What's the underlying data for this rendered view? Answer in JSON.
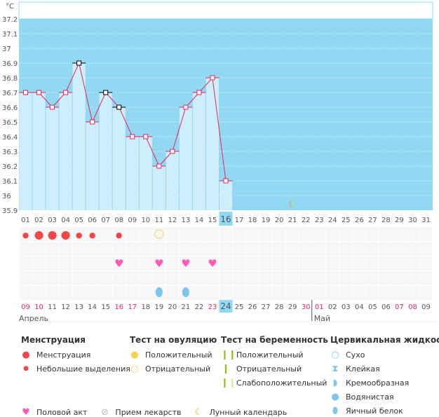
{
  "chart_data": {
    "type": "line",
    "unit": "°C",
    "ylim": [
      35.9,
      37.2
    ],
    "yticks": [
      "37.2",
      "37.1",
      "37",
      "36.9",
      "36.8",
      "36.7",
      "36.6",
      "36.5",
      "36.4",
      "36.3",
      "36.2",
      "36.1",
      "36",
      "35.9"
    ],
    "cycle_days": [
      "01",
      "02",
      "03",
      "04",
      "05",
      "06",
      "07",
      "08",
      "09",
      "10",
      "11",
      "12",
      "13",
      "14",
      "15",
      "16",
      "17",
      "18",
      "19",
      "20",
      "21",
      "22",
      "23",
      "24",
      "25",
      "26",
      "27",
      "28",
      "29",
      "30",
      "31"
    ],
    "values": [
      36.7,
      36.7,
      36.6,
      36.7,
      36.9,
      36.5,
      36.7,
      36.6,
      36.4,
      36.4,
      36.2,
      36.3,
      36.6,
      36.7,
      36.8,
      36.1
    ],
    "black_markers_days": [
      5,
      7,
      8
    ],
    "current_day": 16,
    "moon_day": 21,
    "grid": true,
    "colors": {
      "background": "#92d8f2",
      "bar": "#cdeefb",
      "line": "#e8245a",
      "menses": "#f04848",
      "heart": "#ff5ab4",
      "fluid": "#7cc6ee",
      "ovulation_negative": "#f7d44c",
      "moon": "#f5a020",
      "red_date": "#e8245a",
      "highlight": "#92d8f2"
    }
  },
  "events": {
    "menstruation": {
      "1": "small",
      "2": "big",
      "3": "big",
      "4": "big",
      "5": "small",
      "6": "small",
      "8": "small"
    },
    "ovulation_test_negative": [
      11
    ],
    "intercourse": [
      8,
      11,
      13,
      15
    ],
    "egg_white_fluid": [
      11,
      13
    ]
  },
  "calendar_dates": [
    "09",
    "10",
    "11",
    "12",
    "13",
    "14",
    "15",
    "16",
    "17",
    "18",
    "19",
    "20",
    "21",
    "22",
    "23",
    "24",
    "25",
    "26",
    "27",
    "28",
    "29",
    "30",
    "01",
    "02",
    "03",
    "04",
    "05",
    "06",
    "07",
    "08",
    "09"
  ],
  "red_date_indices": [
    0,
    1,
    7,
    8,
    14,
    21,
    22,
    28,
    29
  ],
  "months": {
    "first": "Апрель",
    "second": "Май"
  },
  "legend": {
    "menstruation": {
      "title": "Менструация",
      "items": [
        "Менструация",
        "Небольшие выделения"
      ]
    },
    "ovulation": {
      "title": "Тест на овуляцию",
      "items": [
        "Положительный",
        "Отрицательный"
      ]
    },
    "pregnancy": {
      "title": "Тест на беременность",
      "items": [
        "Положительный",
        "Отрицательный",
        "Слабоположительный"
      ]
    },
    "fluid": {
      "title": "Цервикальная жидкость",
      "items": [
        "Сухо",
        "Клейкая",
        "Кремообразная",
        "Водянистая",
        "Яичный белок"
      ]
    },
    "other": [
      "Половой акт",
      "Прием лекарств",
      "Лунный календарь"
    ]
  }
}
